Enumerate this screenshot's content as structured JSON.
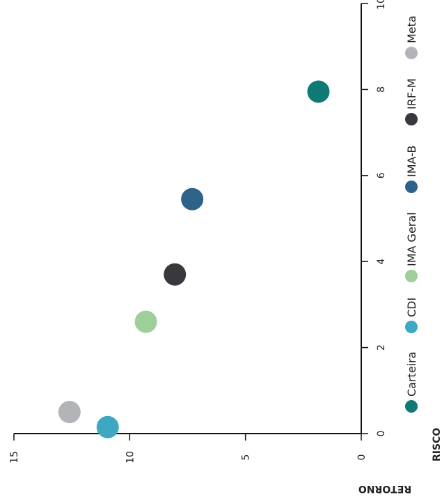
{
  "chart_data": {
    "type": "scatter",
    "orientation": "rotated-90-clockwise",
    "xlabel": "RISCO",
    "ylabel": "RETORNO",
    "xlim": [
      0,
      10
    ],
    "ylim": [
      0,
      15
    ],
    "x_ticks": [
      "0",
      "2",
      "4",
      "6",
      "8",
      "10"
    ],
    "y_ticks": [
      "0",
      "5",
      "10",
      "15"
    ],
    "grid": false,
    "legend_position": "right",
    "series": [
      {
        "name": "Carteira",
        "color": "#0f7a75",
        "points": [
          {
            "x": 7.95,
            "y": 1.85
          }
        ]
      },
      {
        "name": "CDI",
        "color": "#3ea7c1",
        "points": [
          {
            "x": 0.15,
            "y": 10.95
          }
        ]
      },
      {
        "name": "IMA Geral",
        "color": "#9ecf9a",
        "points": [
          {
            "x": 2.6,
            "y": 9.3
          }
        ]
      },
      {
        "name": "IMA-B",
        "color": "#2d6389",
        "points": [
          {
            "x": 5.45,
            "y": 7.3
          }
        ]
      },
      {
        "name": "IRF-M",
        "color": "#38393d",
        "points": [
          {
            "x": 3.7,
            "y": 8.05
          }
        ]
      },
      {
        "name": "Meta",
        "color": "#b3b4b8",
        "points": [
          {
            "x": 0.5,
            "y": 12.6
          }
        ]
      }
    ]
  }
}
